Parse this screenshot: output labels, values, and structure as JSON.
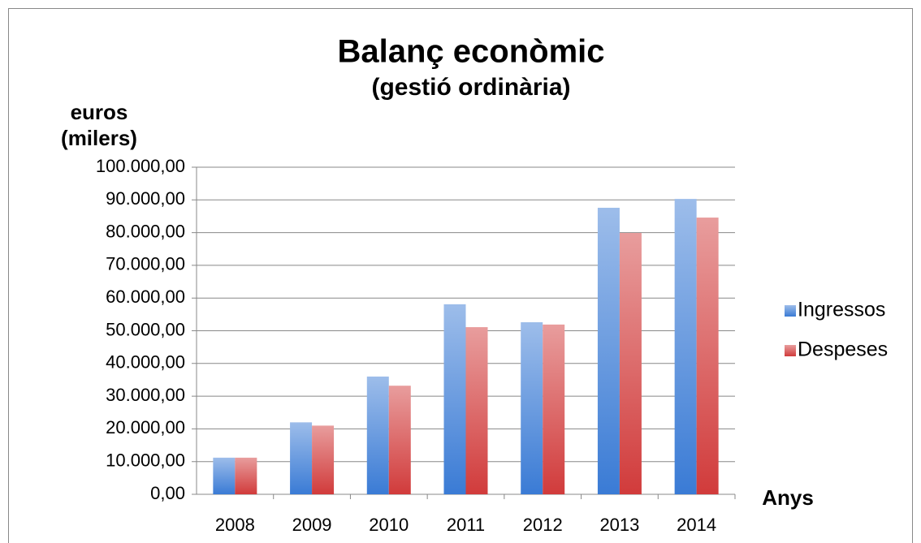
{
  "chart_data": {
    "type": "bar",
    "title": "Balanç econòmic",
    "subtitle": "(gestió ordinària)",
    "y_label": [
      "euros",
      "(milers)"
    ],
    "x_label": "Anys",
    "categories": [
      "2008",
      "2009",
      "2010",
      "2011",
      "2012",
      "2013",
      "2014"
    ],
    "series": [
      {
        "name": "Ingressos",
        "color": "#3a7bd5",
        "values": [
          11200,
          22000,
          36000,
          58100,
          52600,
          87600,
          90300
        ]
      },
      {
        "name": "Despeses",
        "color": "#d13b3b",
        "values": [
          11200,
          21000,
          33200,
          51100,
          51900,
          79900,
          84600
        ]
      }
    ],
    "ylim": [
      0,
      100000
    ],
    "yticks": [
      {
        "value": 0,
        "label": "0,00"
      },
      {
        "value": 10000,
        "label": "10.000,00"
      },
      {
        "value": 20000,
        "label": "20.000,00"
      },
      {
        "value": 30000,
        "label": "30.000,00"
      },
      {
        "value": 40000,
        "label": "40.000,00"
      },
      {
        "value": 50000,
        "label": "50.000,00"
      },
      {
        "value": 60000,
        "label": "60.000,00"
      },
      {
        "value": 70000,
        "label": "70.000,00"
      },
      {
        "value": 80000,
        "label": "80.000,00"
      },
      {
        "value": 90000,
        "label": "90.000,00"
      },
      {
        "value": 100000,
        "label": "100.000,00"
      }
    ],
    "grid": true,
    "legend": "right"
  }
}
